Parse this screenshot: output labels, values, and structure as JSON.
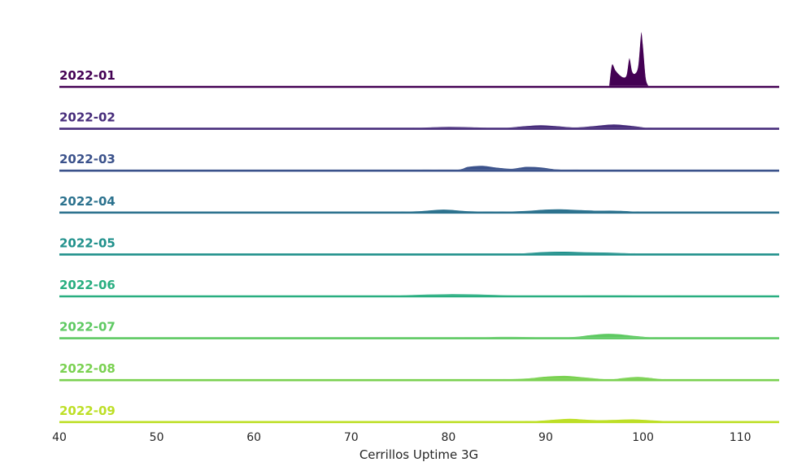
{
  "chart_data": {
    "type": "ridgeline",
    "title": "",
    "xlabel": "Cerrillos Uptime 3G",
    "ylabel": "",
    "xlim": [
      40,
      114
    ],
    "xticks": [
      40,
      50,
      60,
      70,
      80,
      90,
      100,
      110
    ],
    "xtick_labels": [
      "40",
      "50",
      "60",
      "70",
      "80",
      "90",
      "100",
      "110"
    ],
    "grid": false,
    "legend": "none",
    "series": [
      {
        "name": "2022-01",
        "color": "#440154",
        "x": [
          96.5,
          96.8,
          97.2,
          97.6,
          98.0,
          98.3,
          98.6,
          98.9,
          99.2,
          99.5,
          99.8,
          100.0,
          100.3,
          100.6
        ],
        "density": [
          0,
          0.8,
          0.58,
          0.42,
          0.33,
          0.42,
          1.05,
          0.55,
          0.48,
          0.78,
          2.0,
          1.55,
          0.3,
          0
        ]
      },
      {
        "name": "2022-02",
        "color": "#472d7b",
        "x": [
          76,
          78,
          80,
          82,
          84,
          86,
          88,
          89.5,
          91,
          93,
          95,
          97,
          99,
          100.5,
          102
        ],
        "density": [
          0,
          0.03,
          0.05,
          0.04,
          0.02,
          0.02,
          0.08,
          0.11,
          0.08,
          0.03,
          0.08,
          0.14,
          0.08,
          0.01,
          0
        ]
      },
      {
        "name": "2022-03",
        "color": "#3b528b",
        "x": [
          74,
          78,
          81,
          82,
          83.5,
          85,
          86.5,
          88,
          89.5,
          91,
          93,
          95
        ],
        "density": [
          0,
          0.01,
          0.02,
          0.12,
          0.16,
          0.09,
          0.05,
          0.12,
          0.1,
          0.03,
          0.01,
          0
        ]
      },
      {
        "name": "2022-04",
        "color": "#2c728e",
        "x": [
          74,
          77,
          79.5,
          82,
          85,
          88,
          90,
          91.5,
          93,
          95,
          97,
          99,
          100
        ],
        "density": [
          0,
          0.03,
          0.09,
          0.03,
          0.01,
          0.04,
          0.09,
          0.1,
          0.08,
          0.05,
          0.05,
          0.02,
          0
        ]
      },
      {
        "name": "2022-05",
        "color": "#21918c",
        "x": [
          84,
          87,
          90,
          92,
          94,
          96,
          98,
          100
        ],
        "density": [
          0,
          0.01,
          0.07,
          0.08,
          0.06,
          0.05,
          0.03,
          0
        ]
      },
      {
        "name": "2022-06",
        "color": "#28ae80",
        "x": [
          74,
          77,
          80,
          83,
          86,
          89,
          92,
          95,
          98,
          101,
          104
        ],
        "density": [
          0,
          0.04,
          0.06,
          0.05,
          0.02,
          0.01,
          0.01,
          0.02,
          0.02,
          0.01,
          0
        ]
      },
      {
        "name": "2022-07",
        "color": "#5ec962",
        "x": [
          80,
          83,
          85,
          87,
          89,
          91,
          93,
          94.5,
          96,
          97.5,
          99,
          101,
          103
        ],
        "density": [
          0,
          0.01,
          0.03,
          0.03,
          0.02,
          0.01,
          0.03,
          0.09,
          0.14,
          0.13,
          0.07,
          0.01,
          0
        ]
      },
      {
        "name": "2022-08",
        "color": "#7ad151",
        "x": [
          85,
          88,
          90,
          92,
          94,
          96,
          97,
          98,
          99.5,
          101,
          102.5
        ],
        "density": [
          0,
          0.04,
          0.11,
          0.14,
          0.08,
          0.02,
          0.02,
          0.06,
          0.1,
          0.05,
          0
        ]
      },
      {
        "name": "2022-09",
        "color": "#bddf26",
        "x": [
          86,
          89,
          91,
          92.5,
          94,
          95.5,
          97,
          99,
          101,
          103
        ],
        "density": [
          0,
          0.02,
          0.07,
          0.1,
          0.07,
          0.05,
          0.06,
          0.08,
          0.04,
          0
        ]
      }
    ]
  }
}
